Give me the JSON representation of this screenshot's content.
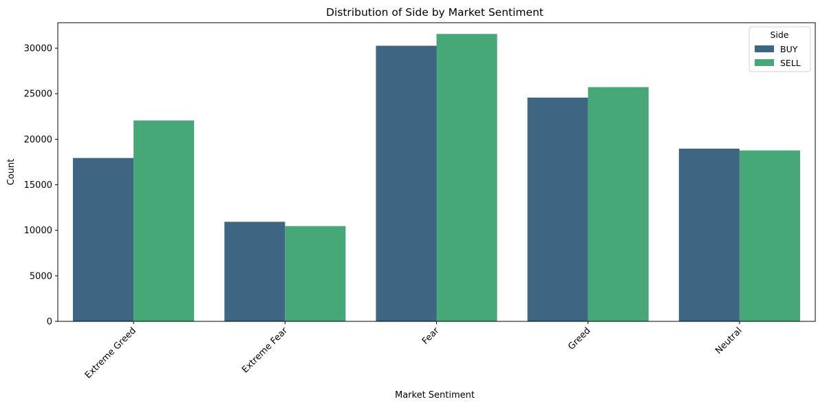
{
  "chart_data": {
    "type": "bar",
    "title": "Distribution of Side by Market Sentiment",
    "xlabel": "Market Sentiment",
    "ylabel": "Count",
    "categories": [
      "Extreme Greed",
      "Extreme Fear",
      "Fear",
      "Greed",
      "Neutral"
    ],
    "series": [
      {
        "name": "BUY",
        "color": "#3e6582",
        "values": [
          17940,
          10935,
          30270,
          24576,
          18969
        ]
      },
      {
        "name": "SELL",
        "color": "#46a877",
        "values": [
          22060,
          10465,
          31567,
          25727,
          18773
        ]
      }
    ],
    "ylim": [
      0,
      32800
    ],
    "yticks": [
      0,
      5000,
      10000,
      15000,
      20000,
      25000,
      30000
    ],
    "legend": {
      "title": "Side",
      "placement": "top-right"
    },
    "grid": false
  }
}
